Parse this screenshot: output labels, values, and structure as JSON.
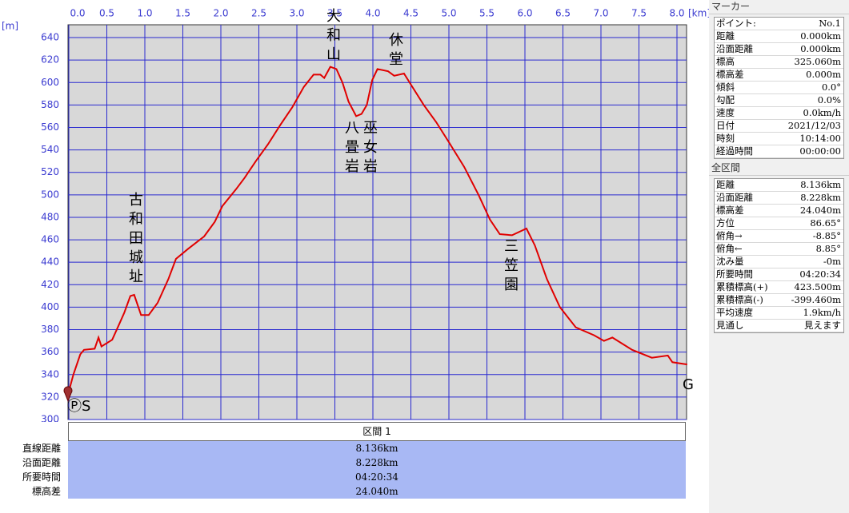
{
  "chart_data": {
    "type": "line",
    "x_unit": "[km]",
    "y_unit": "[m]",
    "xlim": [
      0,
      8.13
    ],
    "ylim": [
      300,
      651.4
    ],
    "grid": true,
    "color": "#e00000",
    "xticks": [
      {
        "value": 0,
        "label": "0.0"
      },
      0.5,
      {
        "value": 1,
        "label": "1.0"
      },
      1.5,
      {
        "value": 2,
        "label": "2.0"
      },
      2.5,
      {
        "value": 3,
        "label": "3.0"
      },
      3.5,
      {
        "value": 4,
        "label": "4.0"
      },
      4.5,
      {
        "value": 5,
        "label": "5.0"
      },
      5.5,
      {
        "value": 6,
        "label": "6.0"
      },
      6.5,
      {
        "value": 7,
        "label": "7.0"
      },
      7.5,
      {
        "value": 8,
        "label": "8.0"
      }
    ],
    "yticks": [
      300,
      320,
      340,
      360,
      380,
      400,
      420,
      440,
      460,
      480,
      500,
      520,
      540,
      560,
      580,
      600,
      620,
      640
    ],
    "x": [
      0,
      0.06,
      0.15,
      0.2,
      0.34,
      0.39,
      0.43,
      0.57,
      0.65,
      0.73,
      0.81,
      0.86,
      0.95,
      1.05,
      1.17,
      1.31,
      1.41,
      1.57,
      1.78,
      1.92,
      2.02,
      2.2,
      2.31,
      2.46,
      2.62,
      2.78,
      2.94,
      3.09,
      3.22,
      3.31,
      3.36,
      3.44,
      3.52,
      3.6,
      3.68,
      3.78,
      3.85,
      3.92,
      3.99,
      4.06,
      4.2,
      4.28,
      4.41,
      4.52,
      4.67,
      4.83,
      4.99,
      5.2,
      5.39,
      5.54,
      5.67,
      5.83,
      6.02,
      6.13,
      6.29,
      6.46,
      6.67,
      6.91,
      7.04,
      7.15,
      7.41,
      7.67,
      7.88,
      7.94,
      8.04,
      8.136
    ],
    "values": [
      325,
      340,
      358,
      362,
      363,
      373,
      365,
      371,
      383,
      395,
      410,
      411,
      393,
      393,
      404,
      425,
      443,
      452,
      463,
      476,
      490,
      505,
      515,
      530,
      545,
      562,
      578,
      596,
      607,
      607,
      604,
      614,
      612,
      600,
      583,
      570,
      572,
      580,
      602,
      612,
      610,
      606,
      608,
      596,
      580,
      565,
      548,
      525,
      500,
      478,
      465,
      464,
      470,
      455,
      425,
      400,
      382,
      375,
      370,
      373,
      362,
      355,
      357,
      351,
      350,
      349
    ],
    "annotations": [
      "古和田城址",
      "大和山",
      "休堂",
      "八畳岩",
      "巫女岩",
      "三笠園",
      "ⓅS",
      "G"
    ]
  },
  "segment_table": {
    "header": "区間 1",
    "rows": [
      [
        "直線距離",
        "8.136km"
      ],
      [
        "沿面距離",
        "8.228km"
      ],
      [
        "所要時間",
        "04:20:34"
      ],
      [
        "標高差",
        "24.040m"
      ]
    ]
  },
  "marker_panel": {
    "title": "マーカー",
    "rows": [
      [
        "ポイント:",
        "No.1"
      ],
      [
        "距離",
        "0.000km"
      ],
      [
        "沿面距離",
        "0.000km"
      ],
      [
        "標高",
        "325.060m"
      ],
      [
        "標高差",
        "0.000m"
      ],
      [
        "傾斜",
        "0.0°"
      ],
      [
        "勾配",
        "0.0%"
      ],
      [
        "速度",
        "0.0km/h"
      ],
      [
        "日付",
        "2021/12/03"
      ],
      [
        "時刻",
        "10:14:00"
      ],
      [
        "経過時間",
        "00:00:00"
      ]
    ]
  },
  "total_panel": {
    "title": "全区間",
    "rows": [
      [
        "距離",
        "8.136km"
      ],
      [
        "沿面距離",
        "8.228km"
      ],
      [
        "標高差",
        "24.040m"
      ],
      [
        "方位",
        "86.65°"
      ],
      [
        "俯角→",
        "-8.85°"
      ],
      [
        "俯角←",
        "8.85°"
      ],
      [
        "沈み量",
        "-0m"
      ],
      [
        "所要時間",
        "04:20:34"
      ],
      [
        "累積標高(+)",
        "423.500m"
      ],
      [
        "累積標高(-)",
        "-399.460m"
      ],
      [
        "平均速度",
        "1.9km/h"
      ],
      [
        "見通し",
        "見えます"
      ]
    ]
  }
}
